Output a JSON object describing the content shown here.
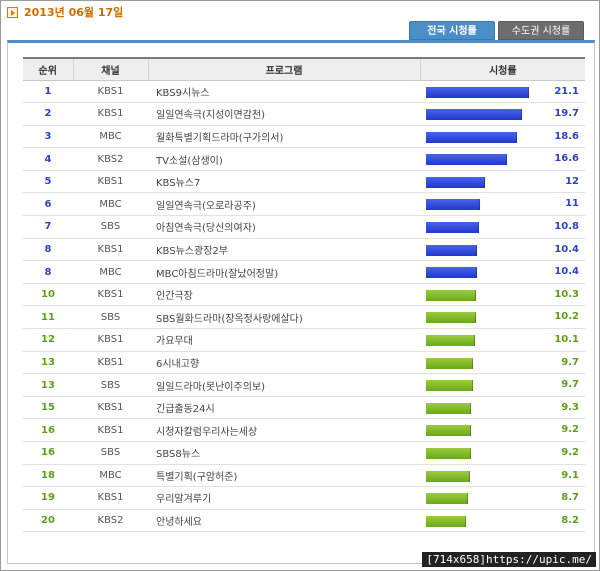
{
  "date": "2013년 06월 17일",
  "tabs": [
    {
      "label": "전국 시청률",
      "active": true
    },
    {
      "label": "수도권 시청률",
      "active": false
    }
  ],
  "columns": {
    "rank": "순위",
    "channel": "채널",
    "program": "프로그램",
    "rating": "시청률"
  },
  "colors": {
    "top_bar": "#2f4bd8",
    "rest_bar": "#7ab62a",
    "accent": "#4b8ec8"
  },
  "rows": [
    {
      "rank": "1",
      "channel": "KBS1",
      "program": "KBS9시뉴스",
      "rating": 21.1,
      "group": "blue"
    },
    {
      "rank": "2",
      "channel": "KBS1",
      "program": "일일연속극(지성이면감천)",
      "rating": 19.7,
      "group": "blue"
    },
    {
      "rank": "3",
      "channel": "MBC",
      "program": "월화특별기획드라마(구가의서)",
      "rating": 18.6,
      "group": "blue"
    },
    {
      "rank": "4",
      "channel": "KBS2",
      "program": "TV소설(삼생이)",
      "rating": 16.6,
      "group": "blue"
    },
    {
      "rank": "5",
      "channel": "KBS1",
      "program": "KBS뉴스7",
      "rating": 12,
      "group": "blue"
    },
    {
      "rank": "6",
      "channel": "MBC",
      "program": "일일연속극(오로라공주)",
      "rating": 11,
      "group": "blue"
    },
    {
      "rank": "7",
      "channel": "SBS",
      "program": "아침연속극(당신의여자)",
      "rating": 10.8,
      "group": "blue"
    },
    {
      "rank": "8",
      "channel": "KBS1",
      "program": "KBS뉴스광장2부",
      "rating": 10.4,
      "group": "blue"
    },
    {
      "rank": "8",
      "channel": "MBC",
      "program": "MBC아침드라마(잘났어정말)",
      "rating": 10.4,
      "group": "blue"
    },
    {
      "rank": "10",
      "channel": "KBS1",
      "program": "인간극장",
      "rating": 10.3,
      "group": "green"
    },
    {
      "rank": "11",
      "channel": "SBS",
      "program": "SBS월화드라마(장옥정사랑에살다)",
      "rating": 10.2,
      "group": "green"
    },
    {
      "rank": "12",
      "channel": "KBS1",
      "program": "가요무대",
      "rating": 10.1,
      "group": "green"
    },
    {
      "rank": "13",
      "channel": "KBS1",
      "program": "6시내고향",
      "rating": 9.7,
      "group": "green"
    },
    {
      "rank": "13",
      "channel": "SBS",
      "program": "일일드라마(못난이주의보)",
      "rating": 9.7,
      "group": "green"
    },
    {
      "rank": "15",
      "channel": "KBS1",
      "program": "긴급출동24시",
      "rating": 9.3,
      "group": "green"
    },
    {
      "rank": "16",
      "channel": "KBS1",
      "program": "시청자칼럼우리사는세상",
      "rating": 9.2,
      "group": "green"
    },
    {
      "rank": "16",
      "channel": "SBS",
      "program": "SBS8뉴스",
      "rating": 9.2,
      "group": "green"
    },
    {
      "rank": "18",
      "channel": "MBC",
      "program": "특별기획(구암허준)",
      "rating": 9.1,
      "group": "green"
    },
    {
      "rank": "19",
      "channel": "KBS1",
      "program": "우리말겨루기",
      "rating": 8.7,
      "group": "green"
    },
    {
      "rank": "20",
      "channel": "KBS2",
      "program": "안녕하세요",
      "rating": 8.2,
      "group": "green"
    }
  ],
  "watermark": "[714x658]https://upic.me/"
}
